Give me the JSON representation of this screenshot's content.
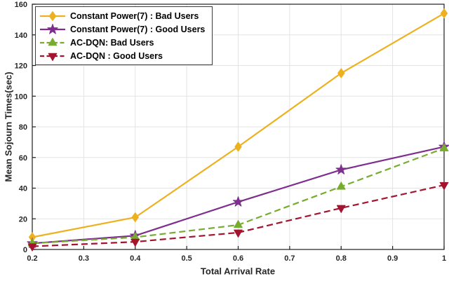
{
  "style": {
    "background": "#ffffff",
    "axis_color": "#1f1f1f",
    "grid_color": "#e3e3e3",
    "text_color": "#262626",
    "legend_border": "#3c3c3c"
  },
  "chart_data": {
    "type": "line",
    "title": "",
    "xlabel": "Total Arrival Rate",
    "ylabel": "Mean Sojourn Times(sec)",
    "x": [
      0.2,
      0.4,
      0.6,
      0.8,
      1.0
    ],
    "xlim": [
      0.2,
      1.0
    ],
    "ylim": [
      0,
      160
    ],
    "xticks": [
      0.2,
      0.3,
      0.4,
      0.5,
      0.6,
      0.7,
      0.8,
      0.9,
      1.0
    ],
    "xtick_labels": [
      "0.2",
      "0.3",
      "0.4",
      "0.5",
      "0.6",
      "0.7",
      "0.8",
      "0.9",
      "1"
    ],
    "yticks": [
      0,
      20,
      40,
      60,
      80,
      100,
      120,
      140,
      160
    ],
    "ytick_labels": [
      "0",
      "20",
      "40",
      "60",
      "80",
      "100",
      "120",
      "140",
      "160"
    ],
    "grid": true,
    "legend_position": "top-left",
    "series": [
      {
        "name": "Constant Power(7) : Bad Users",
        "values": [
          8,
          21,
          67,
          115,
          154
        ],
        "color": "#EDB120",
        "line_style": "solid",
        "marker": "diamond"
      },
      {
        "name": "Constant Power(7) : Good Users",
        "values": [
          4,
          9,
          31,
          52,
          67
        ],
        "color": "#7E2F8E",
        "line_style": "solid",
        "marker": "star"
      },
      {
        "name": "AC-DQN: Bad Users",
        "values": [
          4,
          8,
          16,
          41,
          66
        ],
        "color": "#77AC30",
        "line_style": "dashed",
        "marker": "triangle-up"
      },
      {
        "name": "AC-DQN : Good Users",
        "values": [
          2,
          5,
          11,
          27,
          42
        ],
        "color": "#A2142F",
        "line_style": "dashed",
        "marker": "triangle-down"
      }
    ]
  }
}
